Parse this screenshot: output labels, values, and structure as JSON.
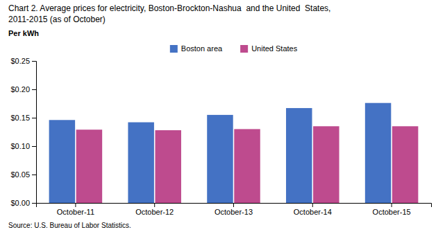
{
  "chart_data": {
    "type": "bar",
    "title": "Chart 2. Average prices for electricity, Boston-Brockton-Nashua  and the United  States,",
    "subtitle": "2011-2015 (as of October)",
    "y_label": "Per kWh",
    "annotations": [
      "Source: U.S. Bureau of Labor Statistics."
    ],
    "categories": [
      "October-11",
      "October-12",
      "October-13",
      "October-14",
      "October-15"
    ],
    "series": [
      {
        "name": "Boston area",
        "color": "#4472C4",
        "values": [
          0.146,
          0.142,
          0.155,
          0.167,
          0.176
        ]
      },
      {
        "name": "United States",
        "color": "#BE4B8E",
        "values": [
          0.129,
          0.128,
          0.13,
          0.135,
          0.135
        ]
      }
    ],
    "ylim": [
      0,
      0.25
    ],
    "yticks": [
      {
        "value": 0.0,
        "label": "$0.00"
      },
      {
        "value": 0.05,
        "label": "$0.05"
      },
      {
        "value": 0.1,
        "label": "$0.10"
      },
      {
        "value": 0.15,
        "label": "$0.15"
      },
      {
        "value": 0.2,
        "label": "$0.20"
      },
      {
        "value": 0.25,
        "label": "$0.25"
      }
    ],
    "grid": false,
    "legend": "upper center"
  }
}
